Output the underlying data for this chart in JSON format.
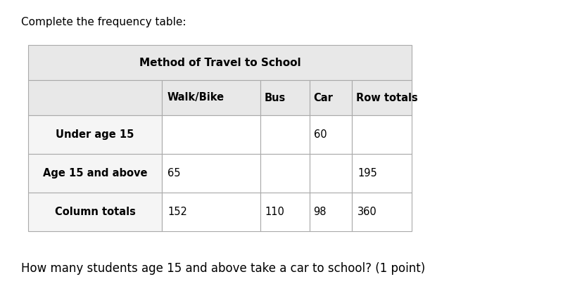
{
  "title_text": "Complete the frequency table:",
  "table_title": "Method of Travel to School",
  "col_headers": [
    "",
    "Walk/Bike",
    "Bus",
    "Car",
    "Row totals"
  ],
  "row_labels": [
    "Under age 15",
    "Age 15 and above",
    "Column totals"
  ],
  "data": [
    [
      "",
      "",
      "60",
      ""
    ],
    [
      "65",
      "",
      "",
      "195"
    ],
    [
      "152",
      "110",
      "98",
      "360"
    ]
  ],
  "question_text": "How many students age 15 and above take a car to school? (1 point)",
  "bg_color": "#ffffff",
  "header_bg": "#e8e8e8",
  "data_row_bg": "#f5f5f5",
  "data_cell_bg": "#ffffff",
  "border_color": "#aaaaaa",
  "text_color": "#000000",
  "title_fontsize": 11,
  "table_title_fontsize": 11,
  "col_header_fontsize": 10.5,
  "data_fontsize": 10.5,
  "question_fontsize": 12
}
